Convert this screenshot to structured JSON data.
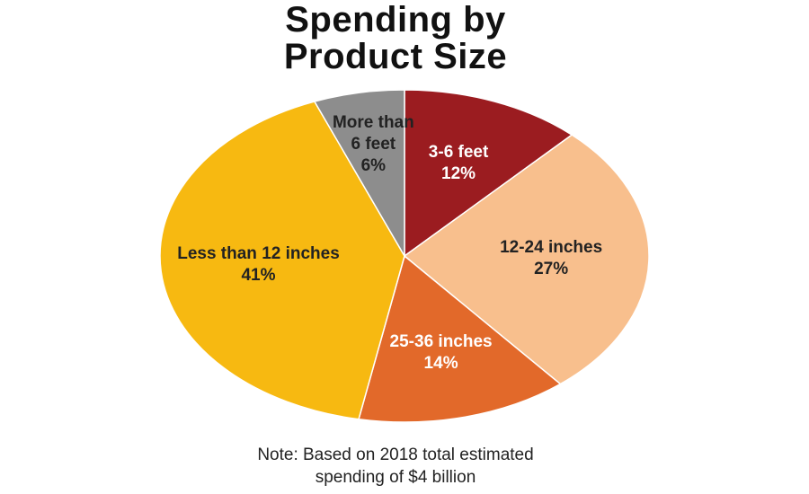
{
  "chart_data": {
    "type": "pie",
    "title": "Spending by Product Size",
    "note": "Note: Based on 2018 total estimated spending of $4 billion",
    "categories": [
      "3-6 feet",
      "12-24 inches",
      "25-36 inches",
      "Less than 12 inches",
      "More than 6 feet"
    ],
    "values": [
      12,
      27,
      14,
      41,
      6
    ],
    "value_labels": [
      "12%",
      "27%",
      "14%",
      "41%",
      "6%"
    ],
    "colors": [
      "#9b1c20",
      "#f8bf8d",
      "#e2692a",
      "#f7b911",
      "#8d8d8d"
    ]
  }
}
